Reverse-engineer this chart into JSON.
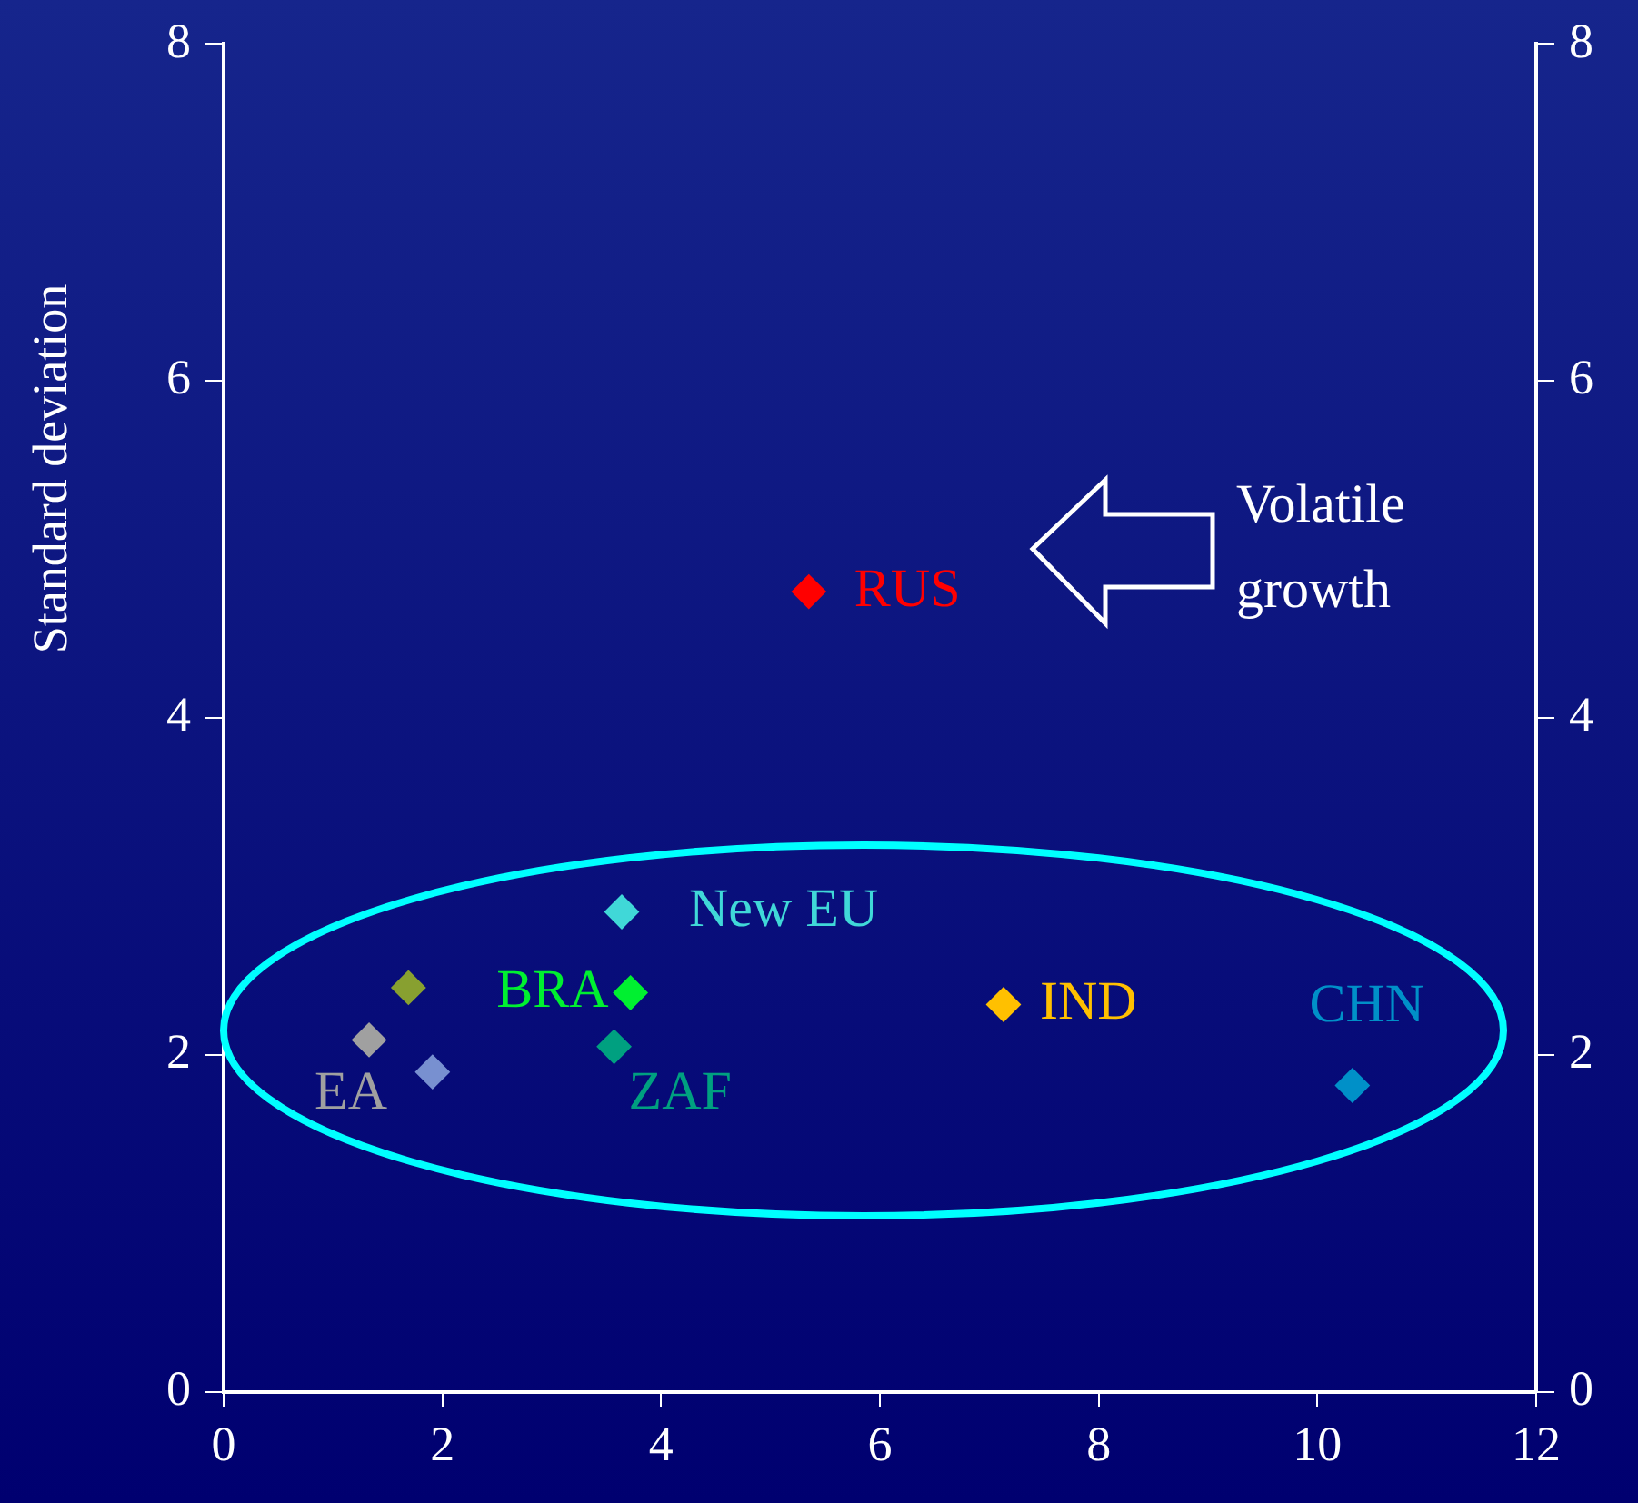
{
  "chart_data": {
    "type": "scatter",
    "ylabel": "Standard deviation",
    "xlim": [
      0,
      12
    ],
    "xticks": [
      0,
      2,
      4,
      6,
      8,
      10,
      12
    ],
    "ylim": [
      0,
      8
    ],
    "yticks": [
      0,
      2,
      4,
      6,
      8
    ],
    "y2lim": [
      0,
      8
    ],
    "y2ticks": [
      0,
      2,
      4,
      6,
      8
    ],
    "marker": "diamond",
    "grid": false,
    "legend": false,
    "annotations": [
      "Volatile growth"
    ],
    "series": [
      {
        "name": "RUS",
        "color": "#ff0000",
        "x": [
          5.35
        ],
        "values": [
          4.75
        ]
      },
      {
        "name": "New EU",
        "color": "#40d8d8",
        "x": [
          3.64
        ],
        "values": [
          2.85
        ]
      },
      {
        "name": "BRA",
        "color": "#00f030",
        "x": [
          3.72
        ],
        "values": [
          2.37
        ]
      },
      {
        "name": "EA",
        "color": "#a0a0a0",
        "x": [
          1.33
        ],
        "values": [
          2.09
        ]
      },
      {
        "name": "ZAF",
        "color": "#00a080",
        "x": [
          3.57
        ],
        "values": [
          2.05
        ]
      },
      {
        "name": "IND",
        "color": "#ffc000",
        "x": [
          7.13
        ],
        "values": [
          2.3
        ]
      },
      {
        "name": "CHN",
        "color": "#0090c8",
        "x": [
          10.32
        ],
        "values": [
          1.82
        ]
      },
      {
        "color": "#88a030",
        "x": [
          1.69
        ],
        "values": [
          2.4
        ]
      },
      {
        "color": "#7890d0",
        "x": [
          1.91
        ],
        "values": [
          1.9
        ]
      }
    ]
  }
}
